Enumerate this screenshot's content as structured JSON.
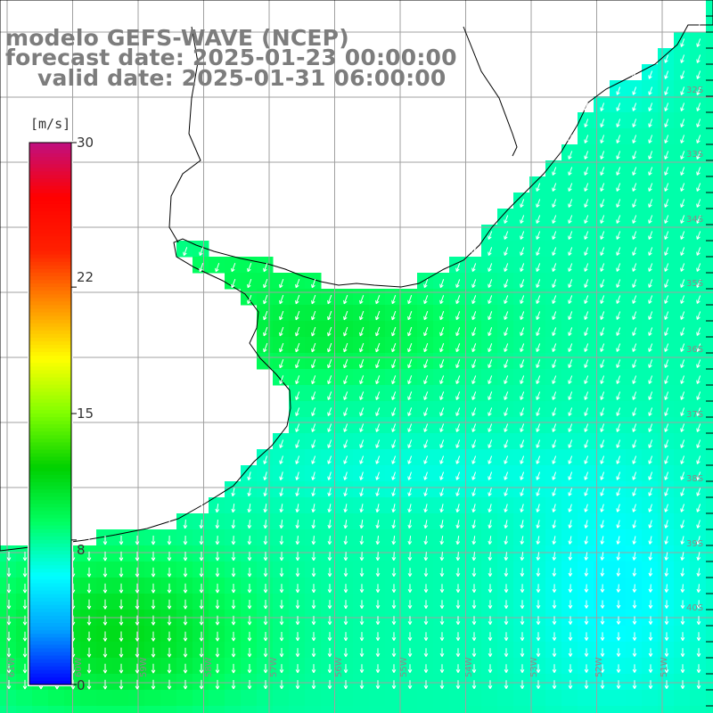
{
  "titles": {
    "line1": "modelo GEFS-WAVE (NCEP)",
    "line2": "forecast date: 2025-01-23 00:00:00",
    "line3": "valid date: 2025-01-31 06:00:00"
  },
  "colorbar": {
    "unit": "[m/s]",
    "ticks": [
      "30",
      "22",
      "15",
      "8",
      "0"
    ],
    "min": 0,
    "max": 30,
    "colors": [
      "#0000ff",
      "#00a0ff",
      "#00ffff",
      "#00ff60",
      "#00d000",
      "#80ff00",
      "#ffff00",
      "#ff9000",
      "#ff2000",
      "#ff0000",
      "#c01080"
    ]
  },
  "lat_labels": [
    "32S",
    "33S",
    "34S",
    "35S",
    "36S",
    "37S",
    "38S",
    "39S",
    "40S"
  ],
  "lon_labels": [
    "61W",
    "60W",
    "59W",
    "58W",
    "57W",
    "56W",
    "55W",
    "54W",
    "53W",
    "52W",
    "51W"
  ],
  "map_style": {
    "land_color": "#ffffff",
    "grid_color": "#a0a0a0",
    "coast_color": "#000000",
    "arrow_color": "#ffffff",
    "title_color": "#7d7d7d"
  },
  "field_summary": {
    "wind_speed_range_ms": [
      5,
      12
    ],
    "dominant_direction_north": "from the northeast (arrows point southwest)",
    "dominant_direction_south": "from the north (arrows point south)"
  }
}
